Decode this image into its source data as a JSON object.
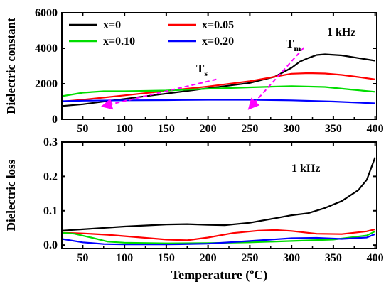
{
  "chart_data": [
    {
      "type": "line",
      "ylabel": "Dielectric constant",
      "xlim": [
        25,
        402
      ],
      "ylim": [
        0,
        6000
      ],
      "xticks": [
        50,
        100,
        150,
        200,
        250,
        300,
        350,
        400
      ],
      "yticks": [
        0,
        2000,
        4000,
        6000
      ],
      "legend_position": "top-left",
      "legend_columns": 2,
      "annotation_frequency": "1 kHz",
      "annotations": [
        {
          "main": "T",
          "sub": "s",
          "arrow_from": [
            210,
            2250
          ],
          "arrow_to": [
            75,
            750
          ]
        },
        {
          "main": "T",
          "sub": "m",
          "arrow_from": [
            315,
            4050
          ],
          "arrow_to": [
            250,
            650
          ]
        }
      ],
      "series": [
        {
          "name": "x=0",
          "color": "#000000",
          "x": [
            25,
            50,
            100,
            150,
            200,
            250,
            280,
            300,
            310,
            320,
            330,
            340,
            360,
            380,
            400
          ],
          "y": [
            750,
            850,
            1150,
            1450,
            1750,
            2050,
            2400,
            2900,
            3250,
            3450,
            3620,
            3660,
            3600,
            3450,
            3300
          ]
        },
        {
          "name": "x=0.05",
          "color": "#ff0000",
          "x": [
            25,
            50,
            100,
            150,
            200,
            250,
            280,
            300,
            320,
            340,
            360,
            380,
            400
          ],
          "y": [
            1000,
            1100,
            1350,
            1600,
            1850,
            2150,
            2400,
            2570,
            2600,
            2580,
            2500,
            2380,
            2250
          ]
        },
        {
          "name": "x=0.10",
          "color": "#00dd00",
          "x": [
            25,
            50,
            75,
            100,
            150,
            200,
            250,
            300,
            340,
            370,
            400
          ],
          "y": [
            1300,
            1500,
            1580,
            1580,
            1620,
            1720,
            1800,
            1870,
            1820,
            1680,
            1550
          ]
        },
        {
          "name": "x=0.20",
          "color": "#0000ff",
          "x": [
            25,
            50,
            100,
            150,
            200,
            250,
            300,
            350,
            400
          ],
          "y": [
            1020,
            1050,
            1070,
            1080,
            1100,
            1100,
            1070,
            1000,
            900
          ]
        }
      ]
    },
    {
      "type": "line",
      "ylabel": "Dielectric loss",
      "xlabel": "Temperature (°C)",
      "xlabel_main": "Temperature (",
      "xlabel_sup": "o",
      "xlabel_tail": "C)",
      "xlim": [
        25,
        402
      ],
      "ylim": [
        -0.01,
        0.3
      ],
      "xticks": [
        50,
        100,
        150,
        200,
        250,
        300,
        350,
        400
      ],
      "yticks": [
        0.0,
        0.1,
        0.2,
        0.3
      ],
      "ytick_labels": [
        "0.0",
        "0.1",
        "0.2",
        "0.3"
      ],
      "annotation_frequency": "1 kHz",
      "series": [
        {
          "name": "x=0",
          "color": "#000000",
          "x": [
            25,
            50,
            100,
            150,
            175,
            200,
            220,
            250,
            280,
            300,
            320,
            340,
            360,
            380,
            390,
            400
          ],
          "y": [
            0.042,
            0.046,
            0.054,
            0.06,
            0.061,
            0.059,
            0.058,
            0.065,
            0.078,
            0.087,
            0.093,
            0.108,
            0.128,
            0.16,
            0.19,
            0.255
          ]
        },
        {
          "name": "x=0.05",
          "color": "#ff0000",
          "x": [
            25,
            50,
            80,
            120,
            150,
            175,
            200,
            230,
            260,
            280,
            300,
            330,
            360,
            390,
            400
          ],
          "y": [
            0.036,
            0.034,
            0.03,
            0.022,
            0.016,
            0.014,
            0.022,
            0.035,
            0.042,
            0.044,
            0.041,
            0.033,
            0.032,
            0.04,
            0.046
          ]
        },
        {
          "name": "x=0.10",
          "color": "#00dd00",
          "x": [
            25,
            40,
            60,
            80,
            100,
            150,
            200,
            250,
            300,
            350,
            390,
            400
          ],
          "y": [
            0.036,
            0.033,
            0.022,
            0.01,
            0.007,
            0.005,
            0.006,
            0.008,
            0.012,
            0.016,
            0.028,
            0.04
          ]
        },
        {
          "name": "x=0.20",
          "color": "#0000ff",
          "x": [
            25,
            50,
            75,
            100,
            150,
            200,
            250,
            300,
            330,
            360,
            390,
            400
          ],
          "y": [
            0.018,
            0.008,
            0.003,
            0.002,
            0.002,
            0.004,
            0.012,
            0.02,
            0.021,
            0.018,
            0.022,
            0.032
          ]
        }
      ]
    }
  ]
}
